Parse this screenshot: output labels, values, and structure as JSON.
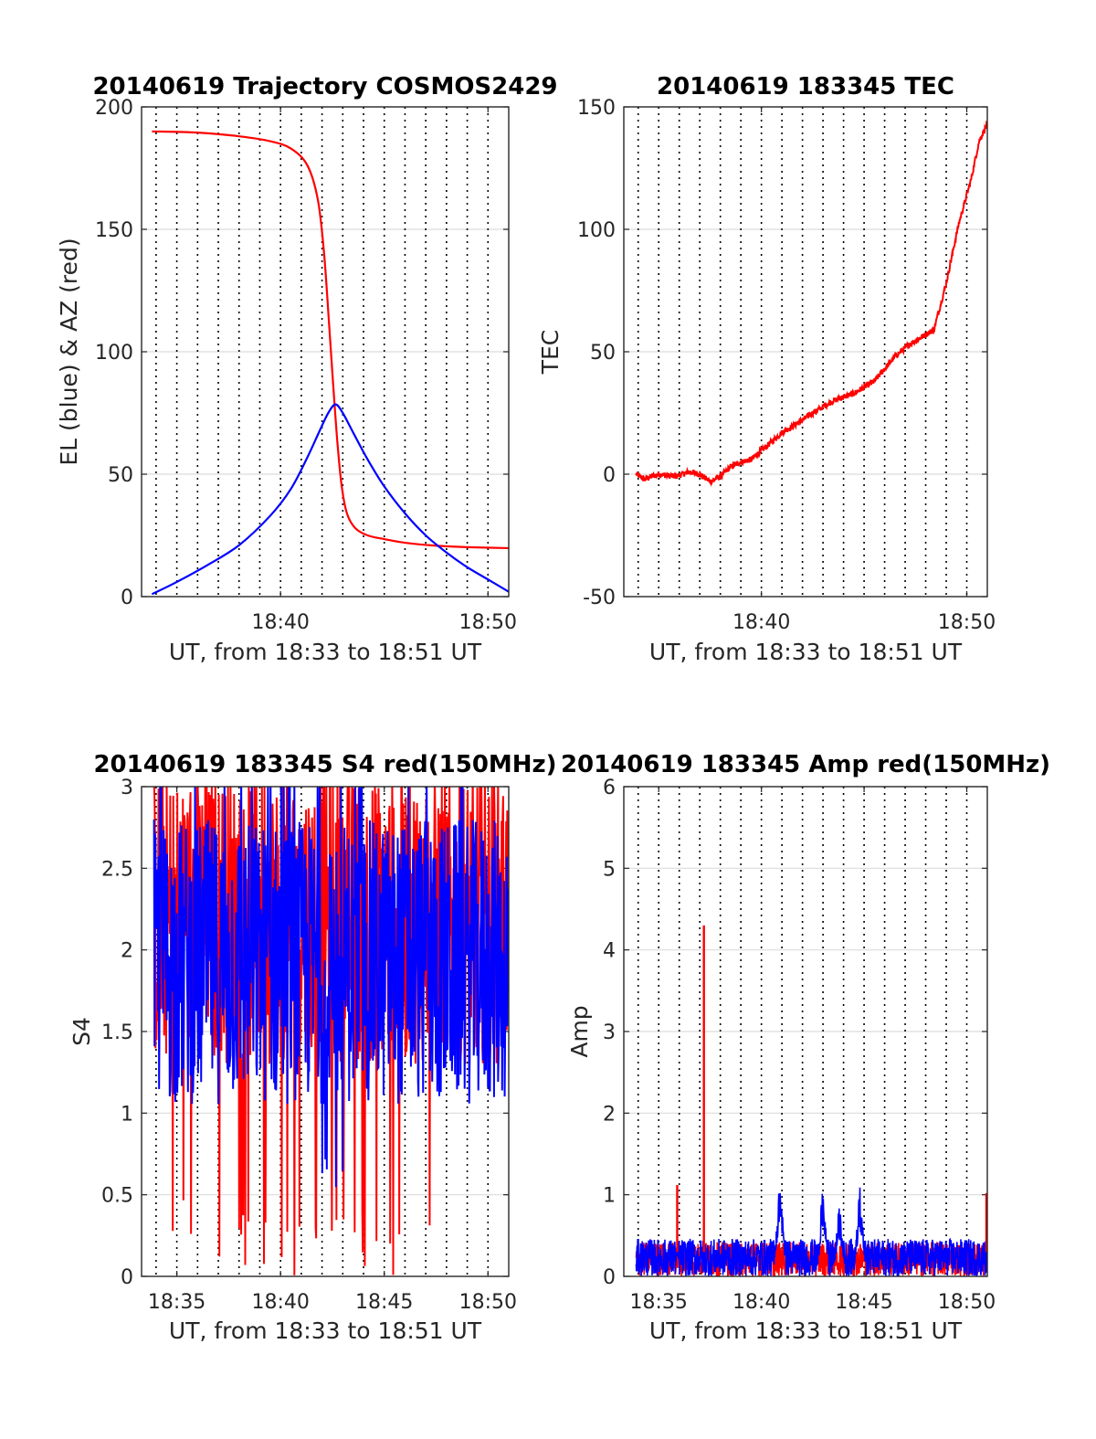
{
  "chart_data": [
    {
      "id": "traj",
      "type": "line",
      "title": "20140619 Trajectory COSMOS2429",
      "xlabel": "UT, from 18:33 to 18:51 UT",
      "ylabel": "EL (blue) & AZ (red)",
      "x_range": [
        "18:33:20",
        "18:51:00"
      ],
      "xlim_minutes": [
        33.3,
        51.0
      ],
      "ylim": [
        0,
        200
      ],
      "y_ticks": [
        "0",
        "50",
        "100",
        "150",
        "200"
      ],
      "x_ticks": [
        {
          "label": "18:40",
          "minute": 40
        },
        {
          "label": "18:50",
          "minute": 50
        }
      ],
      "grid": true,
      "series": [
        {
          "color": "#ff0000",
          "x_minutes": [
            33.8,
            36,
            38,
            39.5,
            40.5,
            41.3,
            41.8,
            42.1,
            42.35,
            42.55,
            42.75,
            42.95,
            43.2,
            43.6,
            44.2,
            45,
            46,
            47.5,
            49,
            51
          ],
          "values": [
            190,
            189.5,
            188,
            186,
            183,
            176,
            162,
            140,
            110,
            85,
            62,
            45,
            34,
            28,
            25,
            23.5,
            22,
            20.8,
            20.2,
            19.8
          ]
        },
        {
          "color": "#0000ff",
          "x_minutes": [
            33.8,
            35,
            36.5,
            38,
            39.5,
            40.5,
            41.3,
            41.9,
            42.3,
            42.65,
            43,
            43.5,
            44.2,
            45,
            46,
            47,
            48,
            49,
            50,
            51
          ],
          "values": [
            1,
            6,
            13,
            21,
            33,
            44,
            57,
            68,
            75,
            78.5,
            75,
            67,
            56,
            45,
            34,
            25,
            18,
            12,
            7,
            2
          ]
        }
      ]
    },
    {
      "id": "tec",
      "type": "line",
      "title": "20140619 183345 TEC",
      "xlabel": "UT, from 18:33 to 18:51 UT",
      "ylabel": "TEC",
      "x_range": [
        "18:33:20",
        "18:51:00"
      ],
      "xlim_minutes": [
        33.3,
        51.0
      ],
      "ylim": [
        -50,
        150
      ],
      "y_ticks": [
        "-50",
        "0",
        "50",
        "100",
        "150"
      ],
      "x_ticks": [
        {
          "label": "18:40",
          "minute": 40
        },
        {
          "label": "18:50",
          "minute": 50
        }
      ],
      "grid": true,
      "series": [
        {
          "color": "#ff0000",
          "x_minutes": [
            33.9,
            34.3,
            35,
            35.8,
            36.5,
            37,
            37.5,
            38,
            38.5,
            39,
            39.5,
            40.2,
            41,
            41.8,
            42.5,
            43.5,
            44.5,
            45.5,
            46,
            46.5,
            47.2,
            48,
            48.4,
            49,
            49.6,
            50.2,
            50.6,
            51
          ],
          "values": [
            0,
            -2,
            0,
            -1,
            1,
            0,
            -3,
            -1,
            3,
            5,
            6,
            11,
            17,
            21,
            25,
            30,
            33,
            38,
            43,
            48,
            53,
            57,
            59,
            78,
            102,
            120,
            136,
            143
          ]
        }
      ]
    },
    {
      "id": "s4",
      "type": "line",
      "title": "20140619 183345 S4 red(150MHz)",
      "xlabel": "UT, from 18:33 to 18:51 UT",
      "ylabel": "S4",
      "x_range": [
        "18:33:20",
        "18:51:00"
      ],
      "xlim_minutes": [
        33.3,
        51.0
      ],
      "ylim": [
        0,
        3
      ],
      "y_ticks": [
        "0",
        "0.5",
        "1",
        "1.5",
        "2",
        "2.5",
        "3"
      ],
      "x_ticks": [
        {
          "label": "18:35",
          "minute": 35
        },
        {
          "label": "18:40",
          "minute": 40
        },
        {
          "label": "18:45",
          "minute": 45
        },
        {
          "label": "18:50",
          "minute": 50
        }
      ],
      "grid": true,
      "series": [
        {
          "color": "#ff0000",
          "x_minutes": [
            33.9,
            51.0
          ],
          "noise": "S4 fluctuations, typically 1.2-3.0, frequent drops toward 0 between 18:38 and 18:47"
        },
        {
          "color": "#0000ff",
          "x_minutes": [
            33.9,
            51.0
          ],
          "noise": "S4 fluctuations, typically 1.0-2.8"
        }
      ]
    },
    {
      "id": "amp",
      "type": "line",
      "title": "20140619 183345 Amp red(150MHz)",
      "xlabel": "UT, from 18:33 to 18:51 UT",
      "ylabel": "Amp",
      "x_range": [
        "18:33:20",
        "18:51:00"
      ],
      "xlim_minutes": [
        33.3,
        51.0
      ],
      "ylim": [
        0,
        6
      ],
      "y_ticks": [
        "0",
        "1",
        "2",
        "3",
        "4",
        "5",
        "6"
      ],
      "x_ticks": [
        {
          "label": "18:35",
          "minute": 35
        },
        {
          "label": "18:40",
          "minute": 40
        },
        {
          "label": "18:45",
          "minute": 45
        },
        {
          "label": "18:50",
          "minute": 50
        }
      ],
      "grid": true,
      "series": [
        {
          "color": "#ff0000",
          "spikes": [
            {
              "minute": 35.9,
              "value": 1.12
            },
            {
              "minute": 37.2,
              "value": 4.3
            },
            {
              "minute": 51.0,
              "value": 1.02
            }
          ],
          "baseline": [
            0,
            0.45
          ]
        },
        {
          "color": "#0000ff",
          "baseline": [
            0,
            0.5
          ],
          "bursts": [
            {
              "minute": 40.9,
              "value": 1.25
            },
            {
              "minute": 43.0,
              "value": 1.15
            },
            {
              "minute": 44.8,
              "value": 1.12
            },
            {
              "minute": 43.8,
              "value": 0.9
            }
          ]
        }
      ]
    }
  ]
}
